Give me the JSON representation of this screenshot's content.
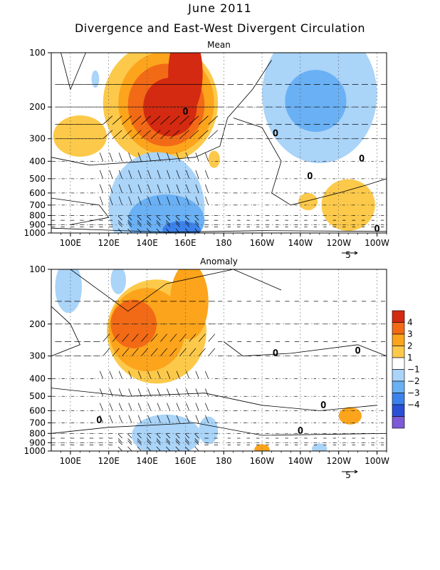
{
  "title": "June 2011",
  "subtitle": "Divergence and East-West Divergent Circulation",
  "vector_ref_label": "5",
  "chart_data": [
    {
      "type": "heatmap",
      "title": "Mean",
      "x_ticks": [
        "100E",
        "120E",
        "140E",
        "160E",
        "180",
        "160W",
        "140W",
        "120W",
        "100W"
      ],
      "x_values": [
        100,
        120,
        140,
        160,
        180,
        200,
        220,
        240,
        260
      ],
      "xlim": [
        90,
        265
      ],
      "y_ticks": [
        "100",
        "200",
        "300",
        "400",
        "500",
        "600",
        "700",
        "800",
        "900",
        "1000"
      ],
      "y_values": [
        100,
        200,
        300,
        400,
        500,
        600,
        700,
        800,
        900,
        1000
      ],
      "ylim": [
        1000,
        100
      ],
      "y_scale": "log",
      "grid": true,
      "contour_levels": [
        -4,
        -3,
        -2,
        -1,
        1,
        2,
        3,
        4
      ],
      "features": [
        {
          "name": "upper-level divergence max",
          "lon": 155,
          "p": 200,
          "value": 4
        },
        {
          "name": "upper-level divergence",
          "lon": 140,
          "p": 150,
          "value": 3
        },
        {
          "name": "upper-level convergence",
          "lon": 225,
          "p": 180,
          "value": -2
        },
        {
          "name": "low-level convergence",
          "lon": 150,
          "p": 850,
          "value": -3
        },
        {
          "name": "low-level divergence",
          "lon": 245,
          "p": 650,
          "value": 1.5
        }
      ]
    },
    {
      "type": "heatmap",
      "title": "Anomaly",
      "x_ticks": [
        "100E",
        "120E",
        "140E",
        "160E",
        "180",
        "160W",
        "140W",
        "120W",
        "100W"
      ],
      "x_values": [
        100,
        120,
        140,
        160,
        180,
        200,
        220,
        240,
        260
      ],
      "xlim": [
        90,
        265
      ],
      "y_ticks": [
        "100",
        "200",
        "300",
        "400",
        "500",
        "600",
        "700",
        "800",
        "900",
        "1000"
      ],
      "y_values": [
        100,
        200,
        300,
        400,
        500,
        600,
        700,
        800,
        900,
        1000
      ],
      "ylim": [
        1000,
        100
      ],
      "y_scale": "log",
      "grid": true,
      "contour_levels": [
        -4,
        -3,
        -2,
        -1,
        1,
        2,
        3,
        4
      ],
      "features": [
        {
          "name": "upper-level divergence max",
          "lon": 130,
          "p": 200,
          "value": 3
        },
        {
          "name": "upper-level divergence",
          "lon": 160,
          "p": 150,
          "value": 2
        },
        {
          "name": "weak convergence",
          "lon": 98,
          "p": 130,
          "value": -1
        },
        {
          "name": "low-level convergence",
          "lon": 160,
          "p": 850,
          "value": -1
        },
        {
          "name": "low-level divergence",
          "lon": 248,
          "p": 650,
          "value": 1.5
        }
      ]
    }
  ],
  "colorbar": {
    "labels": [
      "4",
      "3",
      "2",
      "1",
      "−1",
      "−2",
      "−3",
      "−4"
    ],
    "colors": [
      "#d42a11",
      "#f26a16",
      "#fca41c",
      "#fcc94a",
      "#ffffff",
      "#aad4f8",
      "#6ab0f4",
      "#3c82ec",
      "#2a50d8",
      "#7c5ad8"
    ]
  },
  "palette": {
    "pos4": "#d42a11",
    "pos3": "#f26a16",
    "pos2": "#fca41c",
    "pos1": "#fcc94a",
    "neg1": "#aad4f8",
    "neg2": "#6ab0f4",
    "neg3": "#3c82ec",
    "neg4": "#7c5ad8"
  }
}
